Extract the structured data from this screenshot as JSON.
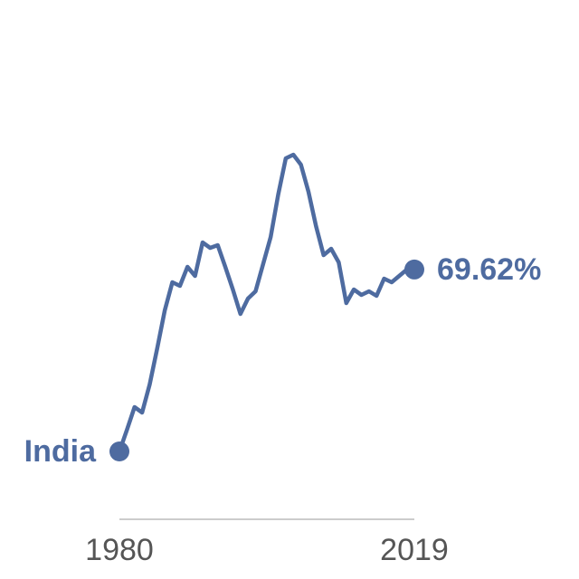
{
  "chart_data": {
    "type": "line",
    "x": [
      1980,
      1981,
      1982,
      1983,
      1984,
      1985,
      1986,
      1987,
      1988,
      1989,
      1990,
      1991,
      1992,
      1993,
      1994,
      1995,
      1996,
      1997,
      1998,
      1999,
      2000,
      2001,
      2002,
      2003,
      2004,
      2005,
      2006,
      2007,
      2008,
      2009,
      2010,
      2011,
      2012,
      2013,
      2014,
      2015,
      2016,
      2017,
      2018,
      2019
    ],
    "series": [
      {
        "name": "India",
        "color": "#4e6ba0",
        "values": [
          29.4,
          34.2,
          39.2,
          38.0,
          44.2,
          52.2,
          60.6,
          66.8,
          66.0,
          70.2,
          68.2,
          75.6,
          74.4,
          75.0,
          70.2,
          65.2,
          59.8,
          63.2,
          64.8,
          70.8,
          76.8,
          86.2,
          94.2,
          95.0,
          92.8,
          86.8,
          79.2,
          72.8,
          74.2,
          71.2,
          62.2,
          65.2,
          64.0,
          64.8,
          63.8,
          67.6,
          66.8,
          68.2,
          69.6,
          69.62
        ],
        "end_label": "69.62%"
      }
    ],
    "xlim": [
      1980,
      2019
    ],
    "xticks": [
      1980,
      2019
    ]
  }
}
